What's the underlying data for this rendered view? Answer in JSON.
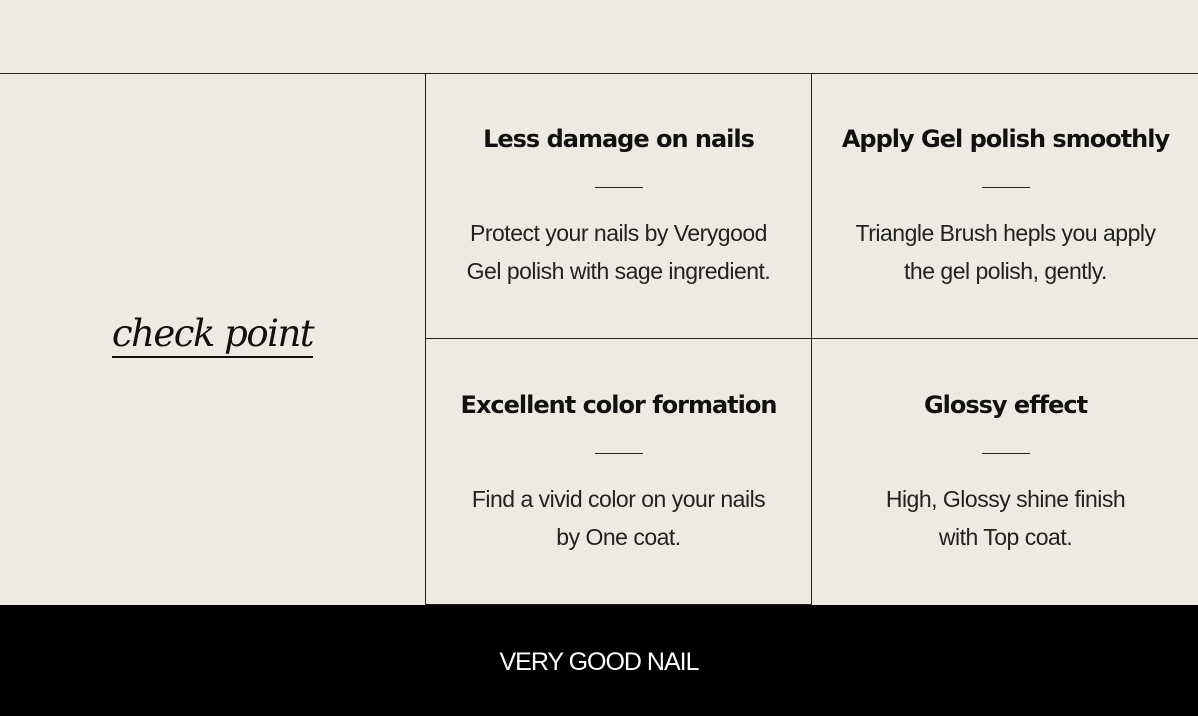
{
  "check_point_label": "check point",
  "features": [
    {
      "title": "Less damage on nails",
      "lines": [
        "Protect your nails by Verygood",
        "Gel polish with sage ingredient."
      ]
    },
    {
      "title": "Apply Gel polish smoothly",
      "lines": [
        "Triangle Brush hepls you apply",
        "the gel polish, gently."
      ]
    },
    {
      "title": "Excellent color formation",
      "lines": [
        "Find a vivid color on your nails",
        "by One coat."
      ]
    },
    {
      "title": "Glossy effect",
      "lines": [
        "High, Glossy shine finish",
        "with Top coat."
      ]
    }
  ],
  "footer": {
    "logo": "VERY GOOD NAIL"
  },
  "colors": {
    "background": "#edeae3",
    "footer": "#000000",
    "text": "#111111"
  }
}
